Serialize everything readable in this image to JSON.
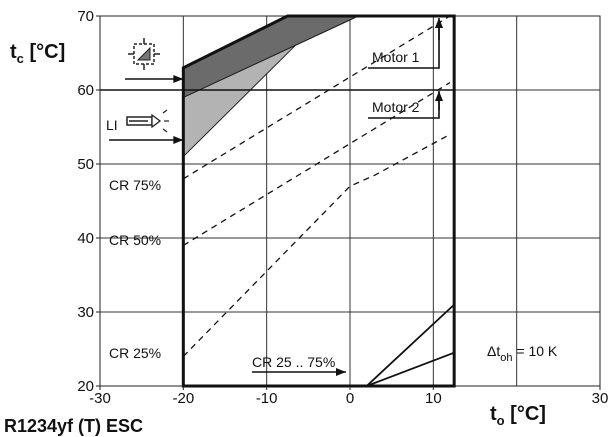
{
  "chart_data": {
    "type": "line",
    "xlim": [
      -30,
      30
    ],
    "ylim": [
      20,
      70
    ],
    "x_ticks": [
      "-30",
      "-20",
      "-10",
      "0",
      "10",
      "30"
    ],
    "y_ticks": [
      "20",
      "30",
      "40",
      "50",
      "60",
      "70"
    ],
    "grid": true,
    "ylabel_main": "t",
    "ylabel_sub": "c",
    "ylabel_unit": " [°C]",
    "xlabel_main": "t",
    "xlabel_sub": "o",
    "xlabel_unit": " [°C]",
    "envelope": [
      [
        -20,
        20
      ],
      [
        -20,
        63
      ],
      [
        -7.5,
        70
      ],
      [
        12.5,
        70
      ],
      [
        12.5,
        20
      ]
    ],
    "limit_motor2": 60,
    "band_dark": [
      [
        -20,
        63
      ],
      [
        -7.5,
        70
      ],
      [
        1,
        70
      ],
      [
        -20,
        59
      ]
    ],
    "band_light": [
      [
        -20,
        59
      ],
      [
        1,
        70
      ],
      [
        -3,
        70
      ],
      [
        -20,
        51
      ]
    ],
    "series": [
      {
        "name": "CR 25 .. 75%",
        "points": [
          [
            2,
            20
          ],
          [
            12.5,
            31
          ]
        ]
      },
      {
        "name": "",
        "points": [
          [
            2,
            20
          ],
          [
            12.5,
            24.5
          ]
        ]
      },
      {
        "name": "CR 75%",
        "points": [
          [
            -20,
            48
          ],
          [
            12,
            70
          ]
        ]
      },
      {
        "name": "CR 50%",
        "points": [
          [
            -20,
            39
          ],
          [
            12,
            61
          ]
        ]
      },
      {
        "name": "CR 25%",
        "points": [
          [
            -20,
            24
          ],
          [
            0,
            47
          ],
          [
            3,
            48.5
          ],
          [
            12,
            54
          ]
        ]
      }
    ],
    "annotations": {
      "motor1": "Motor 1",
      "motor2": "Motor 2",
      "li": "LI",
      "cr75": "CR 75%",
      "cr50": "CR 50%",
      "cr25": "CR 25%",
      "cr_range": "CR 25 .. 75%",
      "delta_main": "Δt",
      "delta_sub": "oh",
      "delta_rest": " = 10 K"
    }
  },
  "footer_text": "R1234yf (T) ESC"
}
